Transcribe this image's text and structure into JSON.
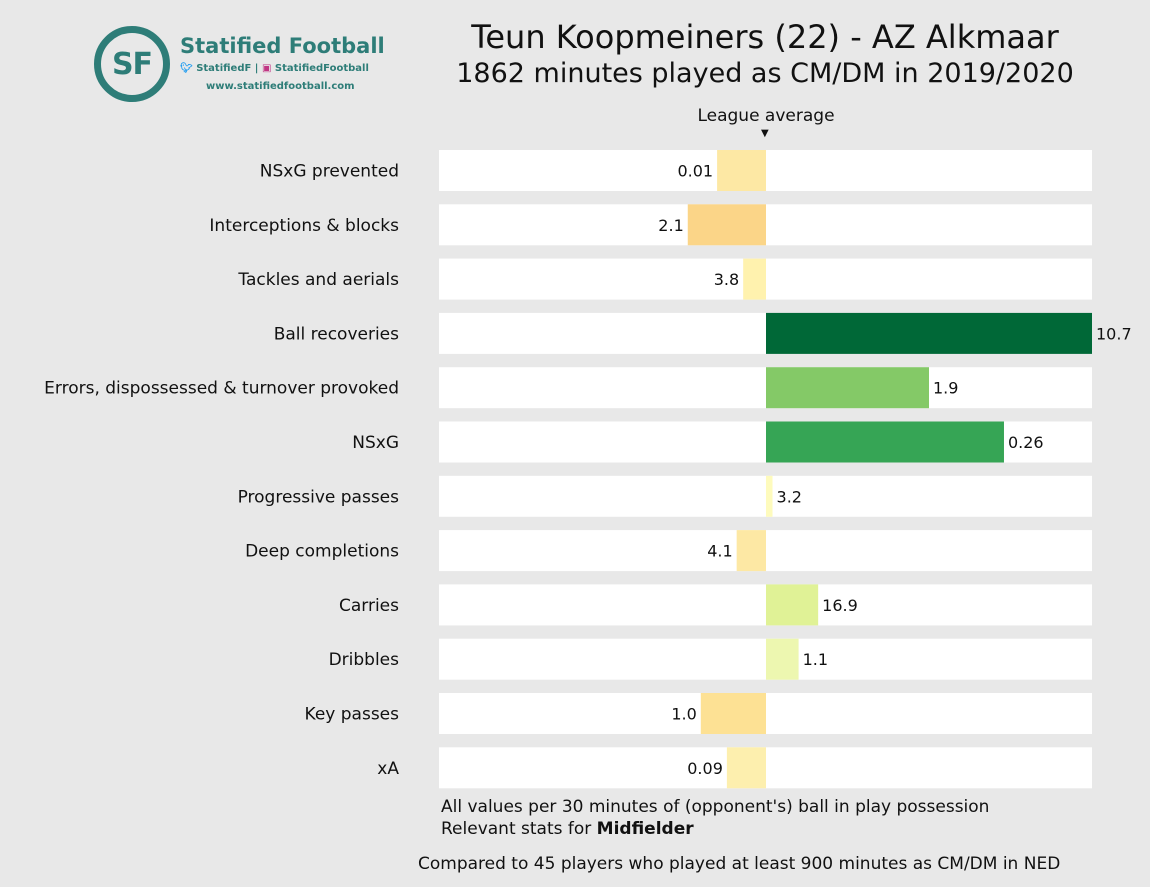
{
  "logo": {
    "initials": "SF",
    "name": "Statified Football",
    "twitter": "StatifiedF",
    "instagram": "StatifiedFootball",
    "separator": "|",
    "website": "www.statifiedfootball.com"
  },
  "chart_data": {
    "type": "bar",
    "title": "Teun Koopmeiners (22) - AZ Alkmaar",
    "subtitle": "1862 minutes played as CM/DM in 2019/2020",
    "reference_label": "League average",
    "categories": [
      "NSxG prevented",
      "Interceptions & blocks",
      "Tackles and aerials",
      "Ball recoveries",
      "Errors, dispossessed & turnover provoked",
      "NSxG",
      "Progressive passes",
      "Deep completions",
      "Carries",
      "Dribbles",
      "Key passes",
      "xA"
    ],
    "labels": [
      "0.01",
      "2.1",
      "3.8",
      "10.7",
      "1.9",
      "0.26",
      "3.2",
      "4.1",
      "16.9",
      "1.1",
      "1.0",
      "0.09"
    ],
    "relative_to_average": [
      -0.15,
      -0.24,
      -0.07,
      1.0,
      0.5,
      0.73,
      0.02,
      -0.09,
      0.16,
      0.1,
      -0.2,
      -0.12
    ],
    "colors": [
      "#fde8a4",
      "#fbd588",
      "#fff2ae",
      "#006837",
      "#84c967",
      "#36a555",
      "#fefbbd",
      "#fde8a4",
      "#e0f296",
      "#edf7b0",
      "#fde194",
      "#fdefae"
    ],
    "xlim": [
      -1,
      1
    ],
    "grid": false,
    "legend": "none"
  },
  "footnotes": {
    "line1": "All values per 30 minutes of (opponent's) ball in play possession",
    "line2_prefix": "Relevant stats for ",
    "line2_bold": "Midfielder",
    "line3": "Compared to 45 players who played at least 900 minutes as CM/DM in NED"
  },
  "colors": {
    "brand": "#2e7d78",
    "background": "#e8e8e8",
    "track": "#ffffff"
  }
}
